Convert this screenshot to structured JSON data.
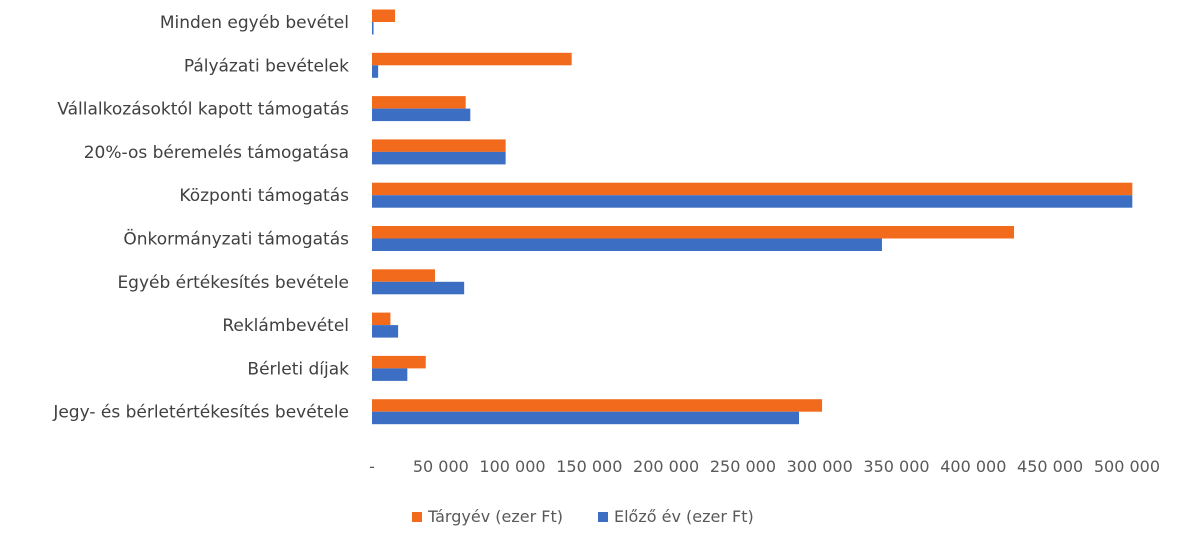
{
  "chart_data": {
    "type": "bar",
    "orientation": "horizontal",
    "categories": [
      "Minden egyéb bevétel",
      "Pályázati bevételek",
      "Vállalkozásoktól kapott támogatás",
      "20%-os béremelés támogatása",
      "Központi támogatás",
      "Önkormányzati támogatás",
      "Egyéb értékesítés bevétele",
      "Reklámbevétel",
      "Bérleti díjak",
      "Jegy- és bérletértékesítés bevétele"
    ],
    "series": [
      {
        "name": "Tárgyév (ezer Ft)",
        "color": "#f26b1d",
        "values": [
          15000,
          130000,
          61000,
          87000,
          495000,
          418000,
          41000,
          12000,
          35000,
          293000
        ]
      },
      {
        "name": "Előző év (ezer Ft)",
        "color": "#3c6fc4",
        "values": [
          1000,
          4000,
          64000,
          87000,
          495000,
          332000,
          60000,
          17000,
          23000,
          278000
        ]
      }
    ],
    "xticks": [
      "-",
      "50 000",
      "100 000",
      "150 000",
      "200 000",
      "250 000",
      "300 000",
      "350 000",
      "400 000",
      "450 000",
      "500 000"
    ],
    "xlim": [
      0,
      500000
    ],
    "grid": false,
    "legend_position": "bottom"
  }
}
